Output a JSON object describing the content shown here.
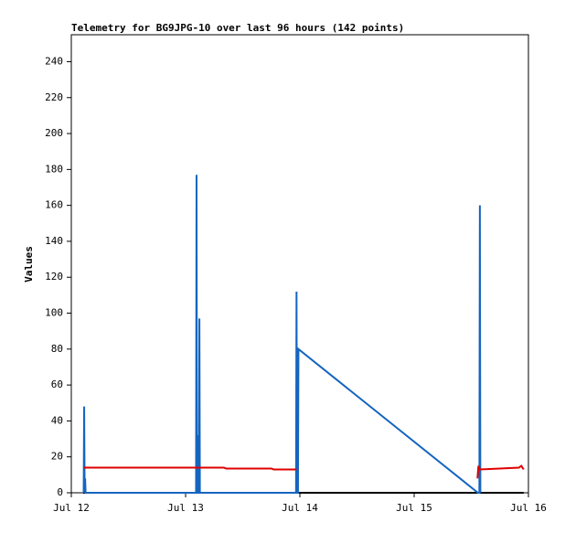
{
  "chart_data": {
    "type": "line",
    "title": "Telemetry for BG9JPG-10 over last 96 hours (142 points)",
    "y_label": "Values",
    "xlim": [
      0,
      96
    ],
    "xticks": [
      {
        "value": 0,
        "label": "Jul 12"
      },
      {
        "value": 24,
        "label": "Jul 13"
      },
      {
        "value": 48,
        "label": "Jul 14"
      },
      {
        "value": 72,
        "label": "Jul 15"
      },
      {
        "value": 96,
        "label": "Jul 16"
      }
    ],
    "ylim": [
      0,
      255
    ],
    "yticks": [
      0,
      20,
      40,
      60,
      80,
      100,
      120,
      140,
      160,
      180,
      200,
      220,
      240
    ],
    "series": [
      {
        "color": "#000000",
        "x": [
          2.5,
          95
        ],
        "values": [
          0,
          0
        ]
      },
      {
        "color": "#1565c0",
        "x": [
          2.6,
          2.7,
          2.8,
          2.9,
          3.0,
          26.2,
          26.3,
          26.4,
          26.5,
          26.6,
          26.8,
          26.9,
          27.0,
          47.2,
          47.3,
          47.4,
          47.6,
          47.7,
          85.4,
          85.7,
          85.8,
          85.9
        ],
        "values": [
          0,
          48,
          0,
          8,
          0,
          0,
          177,
          0,
          32,
          0,
          0,
          97,
          0,
          0,
          112,
          0,
          0,
          80,
          0,
          0,
          160,
          0
        ]
      },
      {
        "color": "#e00000",
        "x": [
          2.5,
          32,
          32.5,
          42,
          42.5,
          47.3,
          null,
          85.3,
          85.5,
          85.8,
          90,
          94,
          94.5,
          95
        ],
        "values": [
          14,
          14,
          13.5,
          13.5,
          13,
          13,
          null,
          8,
          15,
          13,
          13.5,
          14,
          15,
          13
        ]
      }
    ]
  }
}
